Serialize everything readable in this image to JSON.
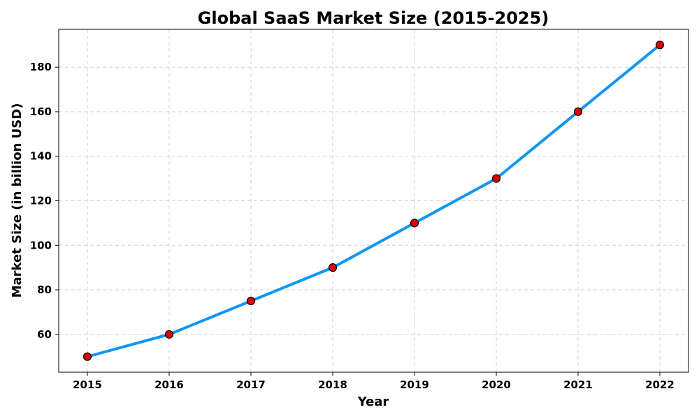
{
  "chart_data": {
    "type": "line",
    "title": "Global SaaS Market Size (2015-2025)",
    "xlabel": "Year",
    "ylabel": "Market Size (in billion USD)",
    "categories": [
      "2015",
      "2016",
      "2017",
      "2018",
      "2019",
      "2020",
      "2021",
      "2022"
    ],
    "series": [
      {
        "values": [
          50,
          60,
          75,
          90,
          110,
          130,
          160,
          190
        ],
        "line_color": "#0d96f2",
        "marker_color": "#e00000",
        "marker_edge_color": "#000000"
      }
    ],
    "yticks": [
      60,
      80,
      100,
      120,
      140,
      160,
      180
    ],
    "ylim": [
      43,
      197
    ],
    "grid": true
  }
}
